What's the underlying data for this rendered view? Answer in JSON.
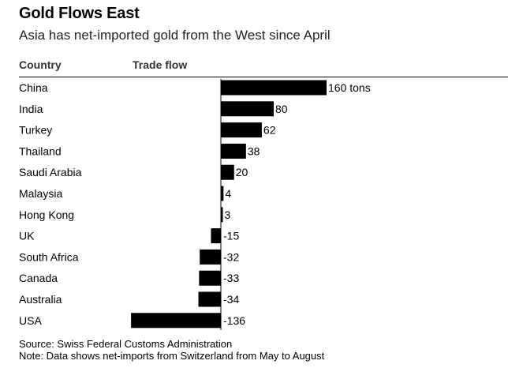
{
  "title": "Gold Flows East",
  "subtitle": "Asia has net-imported gold from the West since April",
  "headers": {
    "country": "Country",
    "flow": "Trade flow"
  },
  "unit": "tons",
  "source": "Source: Swiss Federal Customs Administration",
  "note": "Note: Data shows net-imports from Switzerland from May to August",
  "colors": {
    "bar": "#000000",
    "text": "#000000"
  },
  "chart_data": {
    "type": "bar",
    "orientation": "horizontal",
    "categories": [
      "China",
      "India",
      "Turkey",
      "Thailand",
      "Saudi Arabia",
      "Malaysia",
      "Hong Kong",
      "UK",
      "South Africa",
      "Canada",
      "Australia",
      "USA"
    ],
    "values": [
      160,
      80,
      62,
      38,
      20,
      4,
      3,
      -15,
      -32,
      -33,
      -34,
      -136
    ],
    "value_labels": [
      "160 tons",
      "80",
      "62",
      "38",
      "20",
      "4",
      "3",
      "-15",
      "-32",
      "-33",
      "-34",
      "-136"
    ],
    "xlim": [
      -136,
      160
    ]
  }
}
